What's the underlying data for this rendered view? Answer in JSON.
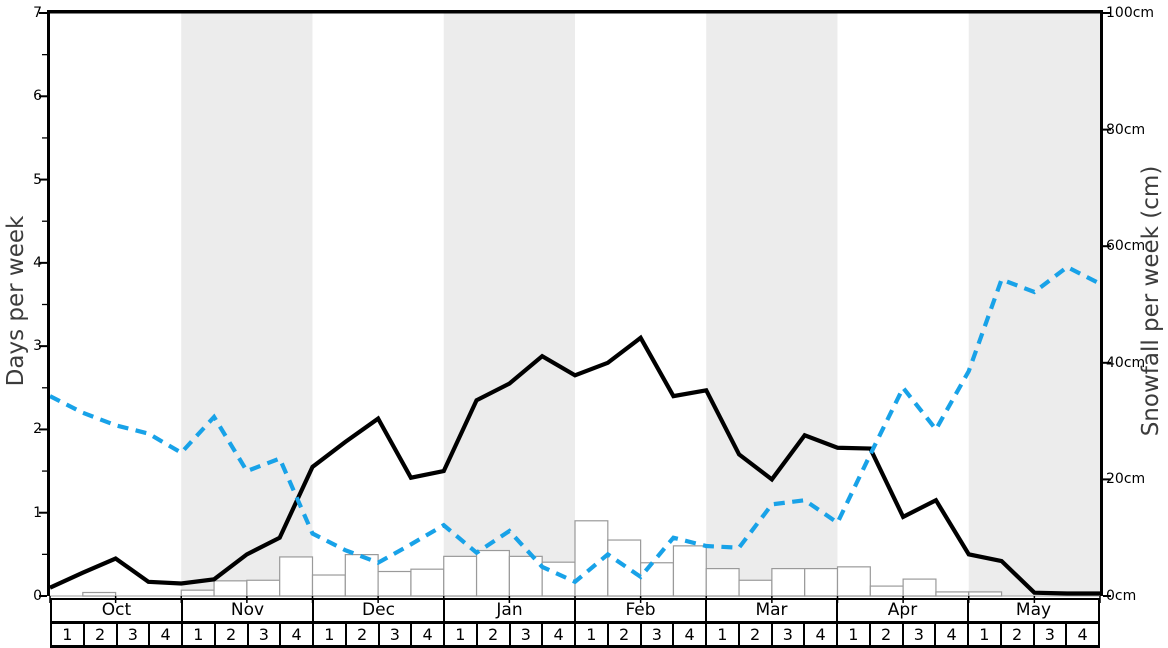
{
  "chart_data": {
    "type": "line+bar",
    "title": "",
    "months": [
      "Oct",
      "Nov",
      "Dec",
      "Jan",
      "Feb",
      "Mar",
      "Apr",
      "May"
    ],
    "week_labels": [
      "1",
      "2",
      "3",
      "4"
    ],
    "weeks_total": 32,
    "shaded_months": [
      "Nov",
      "Jan",
      "Mar",
      "May"
    ],
    "left_axis": {
      "label": "Days per week",
      "min": 0,
      "max": 7,
      "major_ticks": [
        0,
        1,
        2,
        3,
        4,
        5,
        6,
        7
      ],
      "tick_labels": [
        "0",
        "1",
        "2",
        "3",
        "4",
        "5",
        "6",
        "7"
      ],
      "minor_step": 0.5
    },
    "right_axis": {
      "label": "Snowfall per week (cm)",
      "min": 0,
      "max": 100,
      "major_ticks": [
        0,
        20,
        40,
        60,
        80,
        100
      ],
      "tick_labels": [
        "0cm",
        "20cm",
        "40cm",
        "60cm",
        "80cm",
        "100cm"
      ]
    },
    "x_note": "line points sit on 33 week boundaries (k=0..32); bars span each of the 32 weeks",
    "series": [
      {
        "name": "days-per-week-line",
        "type": "line",
        "style": "solid",
        "axis": "left",
        "color": "#000000",
        "values": [
          0.1,
          0.28,
          0.45,
          0.17,
          0.15,
          0.2,
          0.5,
          0.7,
          1.55,
          1.85,
          2.13,
          1.42,
          1.5,
          2.35,
          2.55,
          2.88,
          2.65,
          2.8,
          3.1,
          2.4,
          2.47,
          1.7,
          1.4,
          1.93,
          1.78,
          1.77,
          0.95,
          1.15,
          0.5,
          0.42,
          0.04,
          0.03,
          0.03
        ]
      },
      {
        "name": "blue-dashed-line",
        "type": "line",
        "style": "dashed",
        "axis": "left",
        "color": "#18a2e8",
        "values": [
          2.4,
          2.2,
          2.05,
          1.95,
          1.72,
          2.15,
          1.5,
          1.65,
          0.75,
          0.55,
          0.4,
          0.62,
          0.85,
          0.52,
          0.78,
          0.35,
          0.17,
          0.5,
          0.23,
          0.7,
          0.6,
          0.58,
          1.1,
          1.15,
          0.88,
          1.7,
          2.5,
          2.0,
          2.7,
          3.8,
          3.65,
          3.95,
          3.75
        ]
      },
      {
        "name": "snowfall-bars",
        "type": "bar",
        "axis": "right",
        "unit": "cm",
        "fill": "#ffffff",
        "border": "#9a9a9a",
        "values": [
          0,
          0.6,
          0,
          0,
          1.0,
          2.6,
          2.7,
          6.7,
          3.6,
          7.1,
          4.2,
          4.6,
          6.8,
          7.8,
          6.8,
          5.8,
          12.9,
          9.6,
          5.7,
          8.6,
          4.7,
          2.7,
          4.7,
          4.7,
          5.0,
          1.7,
          2.9,
          0.7,
          0.7,
          0,
          0,
          0
        ]
      }
    ],
    "style": {
      "band_shaded_fill": "#ececec",
      "band_plain_fill": "#ffffff",
      "bottom_spine_color": "#b0b0b0",
      "spine_color": "#000000"
    },
    "legend": "none",
    "grid": "off"
  }
}
